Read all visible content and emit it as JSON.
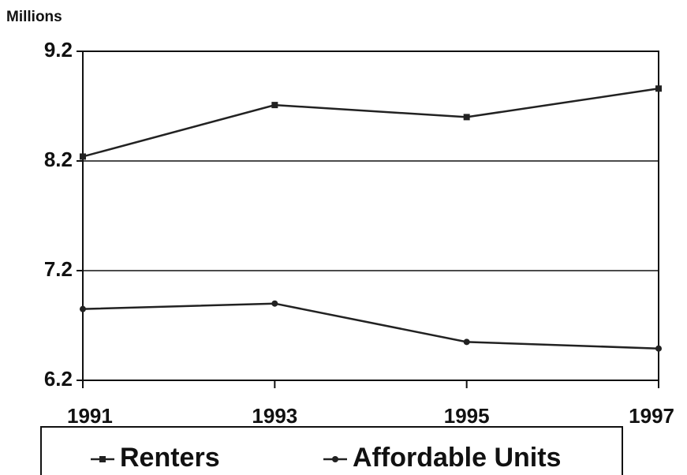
{
  "chart_data": {
    "type": "line",
    "y_label": "Millions",
    "x": [
      1991,
      1993,
      1995,
      1997
    ],
    "xlim": [
      1991,
      1997
    ],
    "xticks": [
      1991,
      1993,
      1995,
      1997
    ],
    "ylim": [
      6.2,
      9.2
    ],
    "yticks": [
      6.2,
      7.2,
      8.2,
      9.2
    ],
    "grid": true,
    "series": [
      {
        "name": "Renters",
        "color": "#222222",
        "marker": "square",
        "values": [
          8.24,
          8.71,
          8.6,
          8.86
        ]
      },
      {
        "name": "Affordable Units",
        "color": "#222222",
        "marker": "circle",
        "values": [
          6.85,
          6.9,
          6.55,
          6.49
        ]
      }
    ]
  }
}
